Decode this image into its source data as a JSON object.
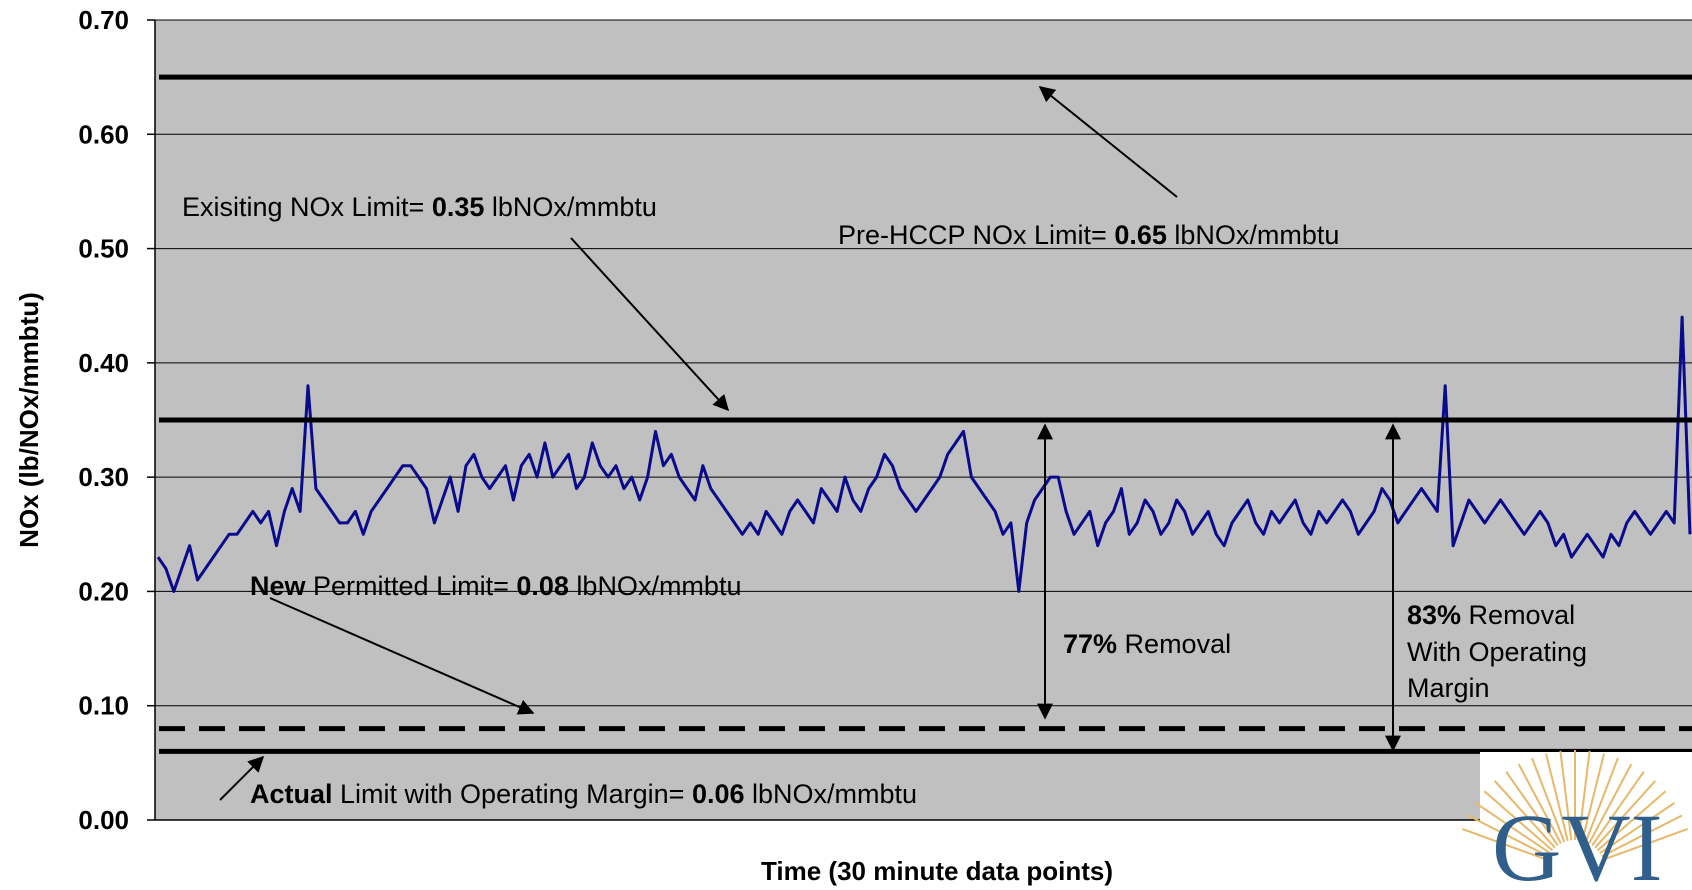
{
  "chart_data": {
    "type": "line",
    "title": "",
    "xlabel": "Time (30 minute data points)",
    "ylabel": "NOx (lb/NOx/mmbtu)",
    "ylim": [
      0,
      0.7
    ],
    "yticks": [
      "0.00",
      "0.10",
      "0.20",
      "0.30",
      "0.40",
      "0.50",
      "0.60",
      "0.70"
    ],
    "grid": true,
    "series": [
      {
        "y": [
          0.23,
          0.22,
          0.2,
          0.22,
          0.24,
          0.21,
          0.22,
          0.23,
          0.24,
          0.25,
          0.25,
          0.26,
          0.27,
          0.26,
          0.27,
          0.24,
          0.27,
          0.29,
          0.27,
          0.38,
          0.29,
          0.28,
          0.27,
          0.26,
          0.26,
          0.27,
          0.25,
          0.27,
          0.28,
          0.29,
          0.3,
          0.31,
          0.31,
          0.3,
          0.29,
          0.26,
          0.28,
          0.3,
          0.27,
          0.31,
          0.32,
          0.3,
          0.29,
          0.3,
          0.31,
          0.28,
          0.31,
          0.32,
          0.3,
          0.33,
          0.3,
          0.31,
          0.32,
          0.29,
          0.3,
          0.33,
          0.31,
          0.3,
          0.31,
          0.29,
          0.3,
          0.28,
          0.3,
          0.34,
          0.31,
          0.32,
          0.3,
          0.29,
          0.28,
          0.31,
          0.29,
          0.28,
          0.27,
          0.26,
          0.25,
          0.26,
          0.25,
          0.27,
          0.26,
          0.25,
          0.27,
          0.28,
          0.27,
          0.26,
          0.29,
          0.28,
          0.27,
          0.3,
          0.28,
          0.27,
          0.29,
          0.3,
          0.32,
          0.31,
          0.29,
          0.28,
          0.27,
          0.28,
          0.29,
          0.3,
          0.32,
          0.33,
          0.34,
          0.3,
          0.29,
          0.28,
          0.27,
          0.25,
          0.26,
          0.2,
          0.26,
          0.28,
          0.29,
          0.3,
          0.3,
          0.27,
          0.25,
          0.26,
          0.27,
          0.24,
          0.26,
          0.27,
          0.29,
          0.25,
          0.26,
          0.28,
          0.27,
          0.25,
          0.26,
          0.28,
          0.27,
          0.25,
          0.26,
          0.27,
          0.25,
          0.24,
          0.26,
          0.27,
          0.28,
          0.26,
          0.25,
          0.27,
          0.26,
          0.27,
          0.28,
          0.26,
          0.25,
          0.27,
          0.26,
          0.27,
          0.28,
          0.27,
          0.25,
          0.26,
          0.27,
          0.29,
          0.28,
          0.26,
          0.27,
          0.28,
          0.29,
          0.28,
          0.27,
          0.38,
          0.24,
          0.26,
          0.28,
          0.27,
          0.26,
          0.27,
          0.28,
          0.27,
          0.26,
          0.25,
          0.26,
          0.27,
          0.26,
          0.24,
          0.25,
          0.23,
          0.24,
          0.25,
          0.24,
          0.23,
          0.25,
          0.24,
          0.26,
          0.27,
          0.26,
          0.25,
          0.26,
          0.27,
          0.26,
          0.44,
          0.25
        ]
      }
    ],
    "reference_lines": [
      {
        "name": "Pre-HCCP NOx Limit",
        "value": 0.65,
        "style": "solid"
      },
      {
        "name": "Exisiting NOx Limit",
        "value": 0.35,
        "style": "solid"
      },
      {
        "name": "New Permitted Limit",
        "value": 0.08,
        "style": "dashed"
      },
      {
        "name": "Actual Limit with Operating Margin",
        "value": 0.06,
        "style": "solid"
      }
    ],
    "annotations": {
      "existing": {
        "pre": "Exisiting NOx Limit= ",
        "value": "0.35",
        "unit": " lbNOx/mmbtu"
      },
      "prehccp": {
        "pre": "Pre-HCCP NOx Limit= ",
        "value": "0.65",
        "unit": " lbNOx/mmbtu"
      },
      "new": {
        "bold": "New",
        "pre": " Permitted Limit= ",
        "value": "0.08",
        "unit": " lbNOx/mmbtu"
      },
      "actual": {
        "bold": "Actual",
        "pre": " Limit with Operating Margin= ",
        "value": "0.06",
        "unit": " lbNOx/mmbtu"
      },
      "removal77": {
        "pct": "77%",
        "text": " Removal"
      },
      "removal83": {
        "pct": "83%",
        "line1": " Removal",
        "line2": "With Operating",
        "line3": "Margin"
      }
    },
    "colors": {
      "series": "#0a0a8c",
      "plot_background": "#c0c0c0",
      "gridline": "#000000"
    }
  },
  "logo": {
    "text": "GVI"
  }
}
